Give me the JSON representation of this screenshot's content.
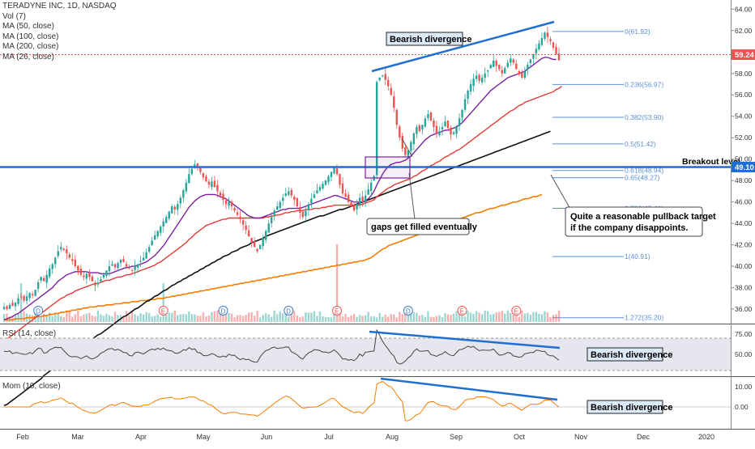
{
  "legend": {
    "title": "TERADYNE INC, 1D, NASDAQ",
    "items": [
      "Vol (7)",
      "MA (50, close)",
      "MA (100, close)",
      "MA (200, close)",
      "MA (26, close)"
    ]
  },
  "rsi_label": "RSI (14, close)",
  "mom_label": "Mom (10, close)",
  "annotations": {
    "bearish_price": "Bearish divergence",
    "bearish_rsi": "Bearish divergence",
    "bearish_mom": "Bearish divergence",
    "gaps": "gaps get filled eventually",
    "pullback_line1": "Quite a reasonable pullback target",
    "pullback_line2": "if the company disappoints.",
    "breakout": "Breakout level."
  },
  "price_badges": {
    "current": "59.24",
    "breakout": "49.10"
  },
  "colors": {
    "up": "#26a69a",
    "down": "#ef5350",
    "ma50": "#e53935",
    "ma100": "#111111",
    "ma200": "#f57c00",
    "ma26": "#7b1fa2",
    "trend": "#1e6fd0",
    "fib": "#5b8fd6",
    "mom": "#f57c00",
    "rsi": "#444444"
  },
  "chart_data": [
    {
      "type": "line",
      "panel": "price",
      "x_ticks": [
        "Feb",
        "Mar",
        "Apr",
        "May",
        "Jun",
        "Jul",
        "Aug",
        "Sep",
        "Oct",
        "Nov",
        "Dec",
        "2020"
      ],
      "y_ticks": [
        "36.00",
        "38.00",
        "40.00",
        "42.00",
        "44.00",
        "46.00",
        "48.00",
        "50.00",
        "52.00",
        "54.00",
        "56.00",
        "58.00",
        "60.00",
        "62.00",
        "64.00"
      ],
      "ylim": [
        34.8,
        64.4
      ],
      "close": [
        36.2,
        36.0,
        36.4,
        36.3,
        36.6,
        37.0,
        37.1,
        36.8,
        37.2,
        37.5,
        37.3,
        37.8,
        38.5,
        39.0,
        38.6,
        39.2,
        39.8,
        40.2,
        40.8,
        41.4,
        41.8,
        41.5,
        41.2,
        40.8,
        40.5,
        40.0,
        39.6,
        39.2,
        39.0,
        39.3,
        39.0,
        38.6,
        38.2,
        38.4,
        38.8,
        39.2,
        39.6,
        40.0,
        40.2,
        39.9,
        40.3,
        40.6,
        40.4,
        40.0,
        39.8,
        39.6,
        40.0,
        40.2,
        40.5,
        40.8,
        41.3,
        41.8,
        42.4,
        42.9,
        43.3,
        43.7,
        44.2,
        44.6,
        45.1,
        45.6,
        45.3,
        45.8,
        46.4,
        47.1,
        47.8,
        48.6,
        49.1,
        49.5,
        49.2,
        48.8,
        48.3,
        47.9,
        47.6,
        47.9,
        47.4,
        47.0,
        46.6,
        46.2,
        45.8,
        46.0,
        45.6,
        45.2,
        44.8,
        44.4,
        43.9,
        43.4,
        42.8,
        42.2,
        41.8,
        41.4,
        42.0,
        42.6,
        43.3,
        44.0,
        44.6,
        45.2,
        45.6,
        46.0,
        46.4,
        46.8,
        47.0,
        46.6,
        46.2,
        45.6,
        45.0,
        44.6,
        45.2,
        45.8,
        46.3,
        46.7,
        47.1,
        47.4,
        47.7,
        48.0,
        48.4,
        48.8,
        49.3,
        48.6,
        47.6,
        46.8,
        46.5,
        46.0,
        45.6,
        45.2,
        45.8,
        46.4,
        46.0,
        46.6,
        47.2,
        47.8,
        48.4,
        57.2,
        57.6,
        57.8,
        57.4,
        56.8,
        56.0,
        54.8,
        53.2,
        52.0,
        51.0,
        50.4,
        50.8,
        51.6,
        52.4,
        53.0,
        52.6,
        53.2,
        53.8,
        54.2,
        53.6,
        53.0,
        52.4,
        52.6,
        53.0,
        53.5,
        52.9,
        52.3,
        52.5,
        53.0,
        53.8,
        54.6,
        55.6,
        56.4,
        57.0,
        57.5,
        57.8,
        57.3,
        57.6,
        58.0,
        58.3,
        58.8,
        59.2,
        58.7,
        58.4,
        58.0,
        58.5,
        59.0,
        59.4,
        59.0,
        58.4,
        57.9,
        57.6,
        58.2,
        58.8,
        59.3,
        59.8,
        60.3,
        60.8,
        61.3,
        61.8,
        61.4,
        61.0,
        60.4,
        59.8,
        59.24
      ],
      "ma26": [
        35.0,
        35.1,
        35.2,
        35.3,
        35.5,
        35.6,
        35.8,
        36.0,
        36.2,
        36.4,
        36.6,
        36.8,
        37.0,
        37.2,
        37.4,
        37.6,
        37.8,
        38.0,
        38.3,
        38.6,
        38.8,
        39.0,
        39.2,
        39.3,
        39.4,
        39.5,
        39.5,
        39.5,
        39.5,
        39.5,
        39.4,
        39.4,
        39.4,
        39.4,
        39.3,
        39.3,
        39.3,
        39.3,
        39.4,
        39.5,
        39.6,
        39.7,
        39.8,
        39.9,
        39.9,
        40.0,
        40.0,
        40.1,
        40.2,
        40.3,
        40.4,
        40.6,
        40.8,
        41.0,
        41.3,
        41.6,
        41.9,
        42.3,
        42.7,
        43.1,
        43.5,
        43.9,
        44.3,
        44.7,
        45.1,
        45.5,
        45.8,
        46.1,
        46.3,
        46.5,
        46.6,
        46.7,
        46.7,
        46.7,
        46.7,
        46.6,
        46.5,
        46.4,
        46.3,
        46.1,
        45.9,
        45.7,
        45.5,
        45.3,
        45.1,
        44.9,
        44.7,
        44.6,
        44.5,
        44.5,
        44.5,
        44.6,
        44.7,
        44.8,
        44.9,
        45.0,
        45.1,
        45.2,
        45.3,
        45.3,
        45.4,
        45.4,
        45.4,
        45.4,
        45.4,
        45.5,
        45.6,
        45.7,
        45.8,
        45.9,
        46.0,
        46.1,
        46.2,
        46.3,
        46.4,
        46.5,
        46.6,
        46.6,
        46.5,
        46.4,
        46.3,
        46.2,
        46.1,
        46.0,
        46.0,
        46.0,
        46.0,
        46.1,
        46.3,
        46.6,
        47.0,
        47.6,
        48.1,
        48.6,
        49.0,
        49.3,
        49.5,
        49.6,
        49.7,
        49.7,
        49.8,
        49.9,
        50.1,
        50.3,
        50.6,
        50.9,
        51.2,
        51.5,
        51.8,
        52.0,
        52.2,
        52.3,
        52.4,
        52.5,
        52.6,
        52.7,
        52.7,
        52.8,
        52.9,
        53.0,
        53.2,
        53.4,
        53.7,
        54.0,
        54.3,
        54.6,
        54.9,
        55.2,
        55.5,
        55.8,
        56.1,
        56.4,
        56.6,
        56.8,
        57.0,
        57.2,
        57.4,
        57.6,
        57.7,
        57.8,
        57.9,
        58.0,
        58.1,
        58.2,
        58.4,
        58.6,
        58.8,
        59.0,
        59.2,
        59.4,
        59.5,
        59.5,
        59.4,
        59.3,
        59.3
      ],
      "ma50": [
        33.0,
        33.2,
        33.4,
        33.6,
        33.8,
        34.0,
        34.2,
        34.4,
        34.6,
        34.8,
        35.0,
        35.2,
        35.4,
        35.6,
        35.8,
        36.0,
        36.2,
        36.4,
        36.6,
        36.8,
        37.0,
        37.1,
        37.3,
        37.4,
        37.5,
        37.7,
        37.8,
        37.9,
        38.0,
        38.1,
        38.2,
        38.3,
        38.4,
        38.4,
        38.5,
        38.6,
        38.7,
        38.7,
        38.8,
        38.9,
        39.0,
        39.0,
        39.1,
        39.2,
        39.2,
        39.3,
        39.4,
        39.5,
        39.6,
        39.7,
        39.8,
        39.9,
        40.0,
        40.1,
        40.3,
        40.4,
        40.6,
        40.8,
        41.0,
        41.2,
        41.4,
        41.6,
        41.8,
        42.0,
        42.2,
        42.5,
        42.7,
        43.0,
        43.2,
        43.4,
        43.6,
        43.8,
        43.9,
        44.0,
        44.1,
        44.2,
        44.3,
        44.4,
        44.4,
        44.5,
        44.5,
        44.5,
        44.5,
        44.5,
        44.5,
        44.5,
        44.5,
        44.5,
        44.5,
        44.5,
        44.5,
        44.5,
        44.6,
        44.6,
        44.7,
        44.7,
        44.8,
        44.8,
        44.9,
        45.0,
        45.0,
        45.1,
        45.1,
        45.2,
        45.2,
        45.2,
        45.3,
        45.3,
        45.3,
        45.4,
        45.4,
        45.4,
        45.5,
        45.5,
        45.6,
        45.6,
        45.7,
        45.7,
        45.7,
        45.7,
        45.7,
        45.7,
        45.7,
        45.7,
        45.7,
        45.7,
        45.8,
        45.9,
        46.0,
        46.1,
        46.2,
        46.5,
        46.7,
        46.9,
        47.1,
        47.3,
        47.4,
        47.6,
        47.7,
        47.8,
        47.9,
        48.0,
        48.1,
        48.2,
        48.4,
        48.5,
        48.7,
        48.9,
        49.0,
        49.2,
        49.4,
        49.5,
        49.7,
        49.8,
        50.0,
        50.2,
        50.3,
        50.5,
        50.6,
        50.8,
        50.9,
        51.1,
        51.3,
        51.5,
        51.7,
        51.9,
        52.1,
        52.3,
        52.5,
        52.7,
        52.9,
        53.1,
        53.3,
        53.5,
        53.7,
        53.9,
        54.1,
        54.3,
        54.5,
        54.6,
        54.8,
        55.0,
        55.1,
        55.3,
        55.4,
        55.5,
        55.6,
        55.7,
        55.8,
        55.9,
        56.0,
        56.1,
        56.2,
        56.3,
        56.5,
        56.6,
        56.8
      ],
      "ma100": [
        27.0,
        27.1,
        27.3,
        27.5,
        27.7,
        27.9,
        28.1,
        28.3,
        28.5,
        28.7,
        28.9,
        29.1,
        29.3,
        29.5,
        29.8,
        30.0,
        30.2,
        30.4,
        30.6,
        30.8,
        31.0,
        31.2,
        31.4,
        31.6,
        31.8,
        32.0,
        32.2,
        32.4,
        32.6,
        32.8,
        33.0,
        33.2,
        33.4,
        33.6,
        33.7,
        33.9,
        34.1,
        34.3,
        34.5,
        34.7,
        34.9,
        35.1,
        35.3,
        35.4,
        35.6,
        35.8,
        36.0,
        36.1,
        36.3,
        36.5,
        36.7,
        36.8,
        37.0,
        37.2,
        37.3,
        37.5,
        37.7,
        37.8,
        38.0,
        38.2,
        38.3,
        38.5,
        38.6,
        38.8,
        38.9,
        39.1,
        39.2,
        39.4,
        39.5,
        39.7,
        39.8,
        40.0,
        40.1,
        40.3,
        40.4,
        40.6,
        40.7,
        40.9,
        41.0,
        41.1,
        41.3,
        41.4,
        41.5,
        41.7,
        41.8,
        41.9,
        42.0,
        42.2,
        42.3,
        42.4,
        42.5,
        42.6,
        42.8,
        42.9,
        43.0,
        43.1,
        43.2,
        43.3,
        43.4,
        43.5,
        43.6,
        43.7,
        43.8,
        43.9,
        44.0,
        44.1,
        44.2,
        44.3,
        44.4,
        44.5,
        44.6,
        44.7,
        44.7,
        44.8,
        44.9,
        45.0,
        45.1,
        45.2,
        45.3,
        45.3,
        45.4,
        45.5,
        45.6,
        45.7,
        45.8,
        45.9,
        46.0,
        46.1,
        46.2,
        46.3,
        46.4,
        46.5,
        46.6,
        46.7,
        46.8,
        46.9,
        47.0,
        47.1,
        47.2,
        47.3,
        47.4,
        47.5,
        47.6,
        47.7,
        47.8,
        47.9,
        48.0,
        48.1,
        48.2,
        48.3,
        48.4,
        48.5,
        48.6,
        48.7,
        48.8,
        48.9,
        49.0,
        49.1,
        49.2,
        49.3,
        49.4,
        49.5,
        49.6,
        49.7,
        49.8,
        49.9,
        50.0,
        50.1,
        50.2,
        50.3,
        50.4,
        50.5,
        50.6,
        50.7,
        50.8,
        50.9,
        51.0,
        51.1,
        51.2,
        51.3,
        51.4,
        51.5,
        51.6,
        51.7,
        51.8,
        51.9,
        52.0,
        52.1,
        52.2,
        52.3,
        52.4,
        52.5,
        52.6
      ],
      "ma200": [
        35.0,
        35.0,
        35.0,
        35.0,
        35.1,
        35.1,
        35.1,
        35.1,
        35.2,
        35.2,
        35.2,
        35.3,
        35.3,
        35.3,
        35.4,
        35.4,
        35.5,
        35.5,
        35.6,
        35.6,
        35.7,
        35.7,
        35.8,
        35.8,
        35.9,
        35.9,
        36.0,
        36.0,
        36.1,
        36.1,
        36.2,
        36.2,
        36.2,
        36.3,
        36.3,
        36.3,
        36.4,
        36.4,
        36.4,
        36.5,
        36.5,
        36.5,
        36.6,
        36.6,
        36.6,
        36.7,
        36.7,
        36.7,
        36.8,
        36.8,
        36.8,
        36.9,
        36.9,
        36.9,
        37.0,
        37.0,
        37.0,
        37.1,
        37.1,
        37.2,
        37.2,
        37.3,
        37.3,
        37.4,
        37.4,
        37.5,
        37.5,
        37.6,
        37.6,
        37.7,
        37.7,
        37.8,
        37.8,
        37.9,
        37.9,
        38.0,
        38.0,
        38.1,
        38.1,
        38.2,
        38.2,
        38.3,
        38.3,
        38.4,
        38.4,
        38.5,
        38.5,
        38.6,
        38.6,
        38.7,
        38.7,
        38.8,
        38.8,
        38.9,
        38.9,
        39.0,
        39.0,
        39.1,
        39.1,
        39.2,
        39.2,
        39.3,
        39.3,
        39.4,
        39.4,
        39.5,
        39.5,
        39.6,
        39.6,
        39.7,
        39.7,
        39.8,
        39.8,
        39.9,
        39.9,
        40.0,
        40.0,
        40.1,
        40.1,
        40.2,
        40.2,
        40.3,
        40.3,
        40.4,
        40.4,
        40.5,
        40.5,
        40.6,
        40.7,
        40.8,
        41.0,
        41.2,
        41.4,
        41.6,
        41.7,
        41.9,
        42.0,
        42.1,
        42.2,
        42.3,
        42.4,
        42.5,
        42.6,
        42.7,
        42.8,
        42.9,
        43.0,
        43.1,
        43.2,
        43.3,
        43.4,
        43.5,
        43.6,
        43.7,
        43.8,
        43.9,
        44.0,
        44.1,
        44.2,
        44.3,
        44.4,
        44.5,
        44.6,
        44.7,
        44.8,
        44.9,
        45.0,
        45.0,
        45.1,
        45.2,
        45.3,
        45.4,
        45.4,
        45.5,
        45.6,
        45.7,
        45.7,
        45.8,
        45.9,
        46.0,
        46.0,
        46.1,
        46.2,
        46.3,
        46.3,
        46.4,
        46.5,
        46.5,
        46.6,
        46.7
      ],
      "breakout_level": 49.1,
      "current_price": 59.24,
      "fib_levels": [
        {
          "label": "0(61.92)",
          "value": 61.92
        },
        {
          "label": "0.236(56.97)",
          "value": 56.97
        },
        {
          "label": "0.382(53.90)",
          "value": 53.9
        },
        {
          "label": "0.5(51.42)",
          "value": 51.42
        },
        {
          "label": "0.618(48.94)",
          "value": 48.94
        },
        {
          "label": "0.65(48.27)",
          "value": 48.27
        },
        {
          "label": "0.786(45.41)",
          "value": 45.41
        },
        {
          "label": "1(40.91)",
          "value": 40.91
        },
        {
          "label": "1.272(35.20)",
          "value": 35.2
        }
      ],
      "event_markers": [
        {
          "label": "D",
          "index": 12
        },
        {
          "label": "E",
          "index": 56
        },
        {
          "label": "D",
          "index": 77
        },
        {
          "label": "D",
          "index": 100
        },
        {
          "label": "E",
          "index": 117
        },
        {
          "label": "D",
          "index": 142
        },
        {
          "label": "E",
          "index": 161
        },
        {
          "label": "E",
          "index": 180
        }
      ],
      "volume_spikes": [
        {
          "index": 6,
          "value": 3.0
        },
        {
          "index": 56,
          "value": 3.0
        },
        {
          "index": 117,
          "value": 6.0
        }
      ]
    },
    {
      "type": "line",
      "panel": "rsi",
      "y_ticks": [
        "50.00",
        "75.00"
      ],
      "ylim": [
        25,
        85
      ],
      "band": [
        30,
        70
      ]
    },
    {
      "type": "line",
      "panel": "momentum",
      "y_ticks": [
        "0.00",
        "10.00"
      ],
      "ylim": [
        -10,
        14
      ]
    }
  ]
}
